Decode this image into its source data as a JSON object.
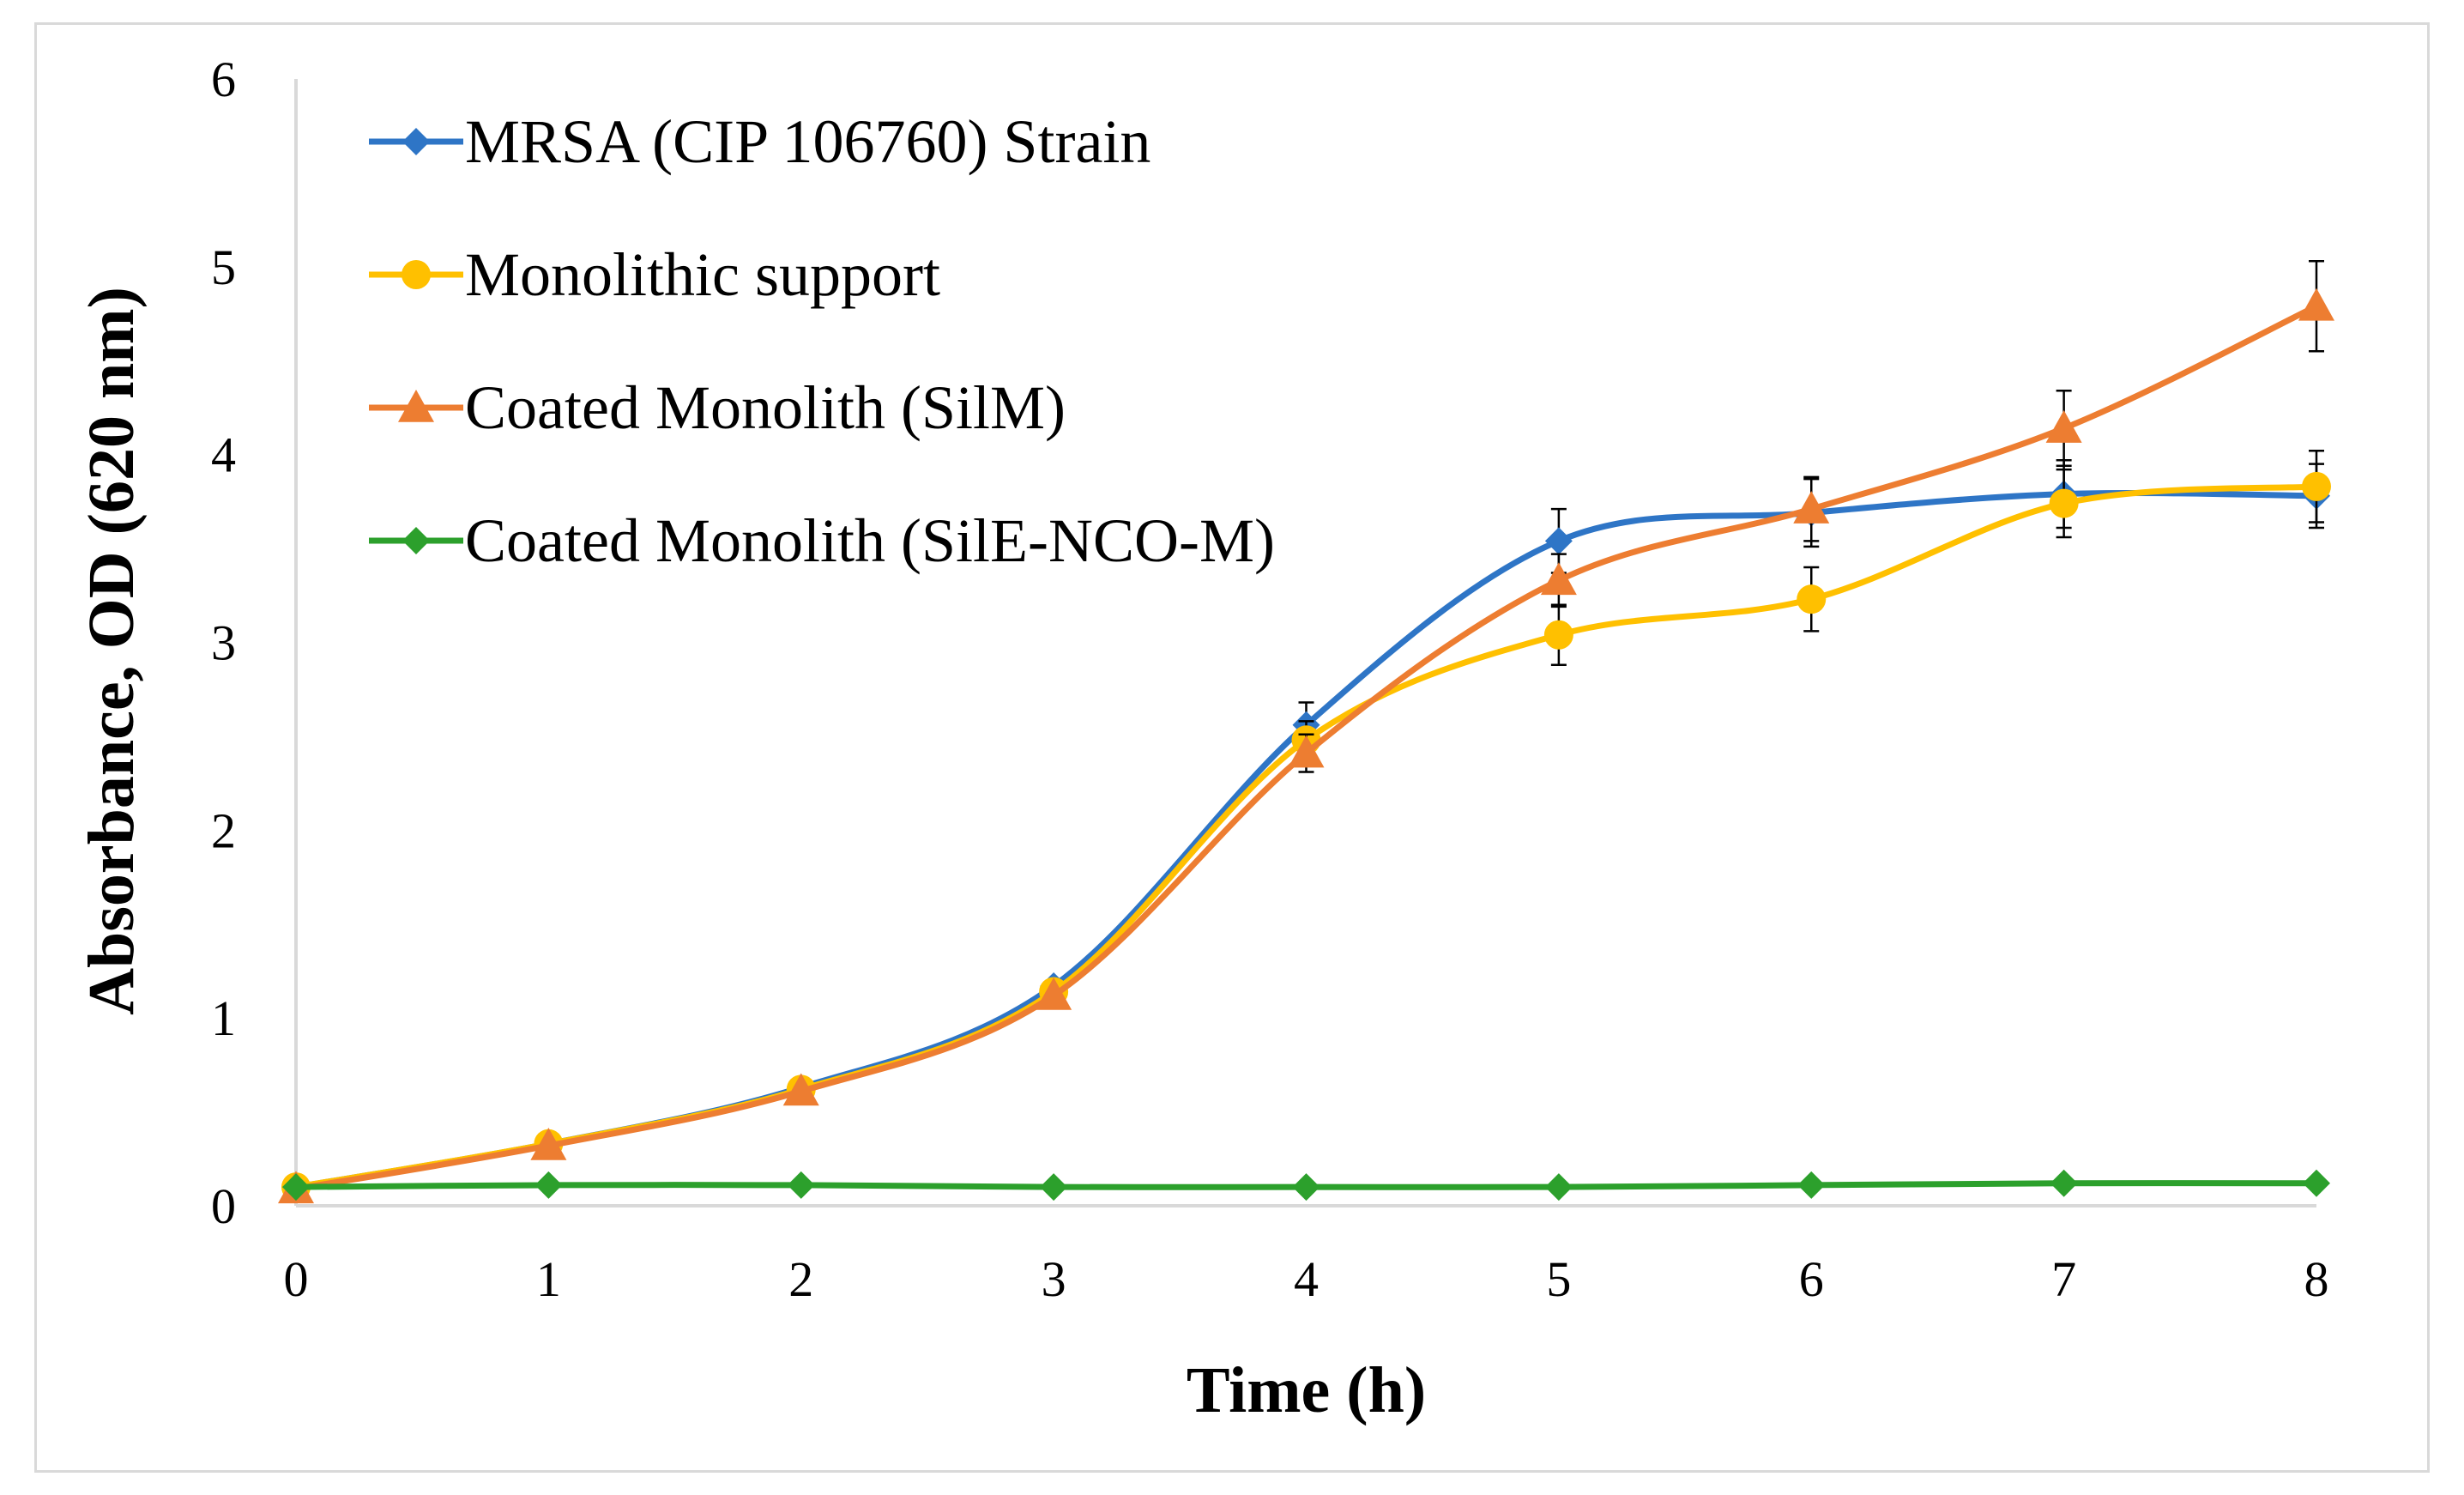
{
  "chart_data": {
    "type": "line",
    "title": "",
    "xlabel": "Time (h)",
    "ylabel": "Absorbance, OD (620 nm)",
    "x": [
      0,
      1,
      2,
      3,
      4,
      5,
      6,
      7,
      8
    ],
    "xlim": [
      0,
      8
    ],
    "ylim": [
      0,
      6
    ],
    "xticks": [
      "0",
      "1",
      "2",
      "3",
      "4",
      "5",
      "6",
      "7",
      "8"
    ],
    "yticks": [
      "0",
      "1",
      "2",
      "3",
      "4",
      "5",
      "6"
    ],
    "grid": false,
    "smooth": true,
    "legend_position": "top-left",
    "series": [
      {
        "name": "MRSA (CIP 106760) Strain",
        "marker": "diamond",
        "color": "#2e75c6",
        "values": [
          0.1,
          0.33,
          0.63,
          1.17,
          2.56,
          3.54,
          3.69,
          3.79,
          3.78
        ],
        "errors": [
          0,
          0,
          0,
          0,
          0.12,
          0.17,
          0.18,
          0.18,
          0.17
        ]
      },
      {
        "name": "Monolithic support",
        "marker": "circle",
        "color": "#ffc000",
        "values": [
          0.1,
          0.33,
          0.62,
          1.14,
          2.48,
          3.04,
          3.23,
          3.74,
          3.83
        ],
        "errors": [
          0,
          0,
          0,
          0,
          0.1,
          0.16,
          0.17,
          0.18,
          0.19
        ]
      },
      {
        "name": "Coated Monolith (SilM)",
        "marker": "triangle",
        "color": "#ed7d31",
        "values": [
          0.09,
          0.32,
          0.61,
          1.12,
          2.41,
          3.33,
          3.71,
          4.14,
          4.79
        ],
        "errors": [
          0,
          0,
          0,
          0,
          0.1,
          0.14,
          0.17,
          0.2,
          0.24
        ]
      },
      {
        "name": "Coated Monolith (SilE-NCO-M)",
        "marker": "diamond",
        "color": "#2ca02c",
        "values": [
          0.1,
          0.11,
          0.11,
          0.1,
          0.1,
          0.1,
          0.11,
          0.12,
          0.12
        ],
        "errors": [
          0,
          0,
          0,
          0,
          0,
          0,
          0,
          0,
          0
        ]
      }
    ]
  }
}
